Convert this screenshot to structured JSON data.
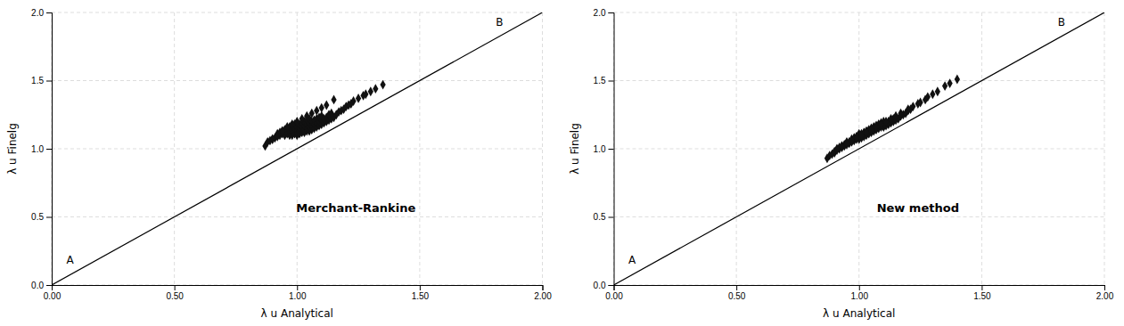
{
  "chart_data": [
    {
      "type": "scatter",
      "xlabel": "λ u Analytical",
      "ylabel": "λ u Finelg",
      "xlim": [
        0.0,
        2.0
      ],
      "ylim": [
        0.0,
        2.0
      ],
      "xticks": [
        {
          "value": 0.0,
          "label": "0.00"
        },
        {
          "value": 0.5,
          "label": "0.50"
        },
        {
          "value": 1.0,
          "label": "1.00"
        },
        {
          "value": 1.5,
          "label": "1.50"
        },
        {
          "value": 2.0,
          "label": "2.00"
        }
      ],
      "yticks": [
        {
          "value": 0.0,
          "label": "0.0"
        },
        0.5,
        {
          "value": 1.0,
          "label": "1.0"
        },
        1.5,
        {
          "value": 2.0,
          "label": "2.0"
        }
      ],
      "grid": true,
      "annotations": [
        {
          "text": "A",
          "x": 0.06,
          "y": 0.16
        },
        {
          "text": "B",
          "x": 1.81,
          "y": 1.9
        },
        {
          "text": "Merchant-Rankine"
        }
      ],
      "series": [
        {
          "type": "scatter",
          "color": "#111111",
          "marker": "diamond",
          "x": [
            0.87,
            0.88,
            0.89,
            0.9,
            0.91,
            0.92,
            0.92,
            0.93,
            0.93,
            0.94,
            0.94,
            0.95,
            0.95,
            0.95,
            0.96,
            0.96,
            0.96,
            0.97,
            0.97,
            0.97,
            0.97,
            0.98,
            0.98,
            0.98,
            0.98,
            0.99,
            0.99,
            0.99,
            0.99,
            1.0,
            1.0,
            1.0,
            1.0,
            1.0,
            1.01,
            1.01,
            1.01,
            1.01,
            1.02,
            1.02,
            1.02,
            1.02,
            1.03,
            1.03,
            1.03,
            1.03,
            1.04,
            1.04,
            1.04,
            1.04,
            1.05,
            1.05,
            1.05,
            1.05,
            1.06,
            1.06,
            1.06,
            1.07,
            1.07,
            1.07,
            1.08,
            1.08,
            1.08,
            1.09,
            1.09,
            1.09,
            1.1,
            1.1,
            1.1,
            1.11,
            1.11,
            1.12,
            1.12,
            1.13,
            1.13,
            1.14,
            1.14,
            1.15,
            1.16,
            1.17,
            1.18,
            1.19,
            1.2,
            1.21,
            1.22,
            1.23,
            1.25,
            1.27,
            1.28,
            1.3,
            1.32,
            1.35,
            0.9,
            0.92,
            0.94,
            0.96,
            0.98,
            1.0,
            1.02,
            1.04,
            1.06,
            1.08,
            1.1,
            1.12,
            1.15
          ],
          "values": [
            1.02,
            1.05,
            1.06,
            1.07,
            1.08,
            1.09,
            1.11,
            1.1,
            1.12,
            1.11,
            1.13,
            1.1,
            1.12,
            1.14,
            1.11,
            1.13,
            1.15,
            1.1,
            1.12,
            1.14,
            1.16,
            1.1,
            1.12,
            1.14,
            1.17,
            1.11,
            1.13,
            1.15,
            1.18,
            1.1,
            1.12,
            1.14,
            1.16,
            1.19,
            1.11,
            1.13,
            1.15,
            1.18,
            1.12,
            1.14,
            1.16,
            1.19,
            1.12,
            1.14,
            1.17,
            1.2,
            1.13,
            1.15,
            1.18,
            1.21,
            1.13,
            1.16,
            1.19,
            1.22,
            1.14,
            1.17,
            1.2,
            1.15,
            1.18,
            1.21,
            1.16,
            1.19,
            1.22,
            1.17,
            1.2,
            1.23,
            1.18,
            1.21,
            1.24,
            1.19,
            1.22,
            1.2,
            1.23,
            1.21,
            1.25,
            1.22,
            1.26,
            1.23,
            1.25,
            1.27,
            1.28,
            1.29,
            1.31,
            1.32,
            1.33,
            1.35,
            1.37,
            1.39,
            1.4,
            1.42,
            1.44,
            1.47,
            1.07,
            1.1,
            1.13,
            1.16,
            1.18,
            1.2,
            1.22,
            1.24,
            1.26,
            1.28,
            1.3,
            1.32,
            1.36
          ]
        },
        {
          "type": "line",
          "color": "#000000",
          "x": [
            0,
            2
          ],
          "values": [
            0,
            2
          ]
        }
      ]
    },
    {
      "type": "scatter",
      "xlabel": "λ u Analytical",
      "ylabel": "λ u Finelg",
      "xlim": [
        0.0,
        2.0
      ],
      "ylim": [
        0.0,
        2.0
      ],
      "xticks": [
        {
          "value": 0.0,
          "label": "0.00"
        },
        {
          "value": 0.5,
          "label": "0.50"
        },
        {
          "value": 1.0,
          "label": "1.00"
        },
        {
          "value": 1.5,
          "label": "1.50"
        },
        {
          "value": 2.0,
          "label": "2.00"
        }
      ],
      "yticks": [
        {
          "value": 0.0,
          "label": "0.0"
        },
        0.5,
        {
          "value": 1.0,
          "label": "1.0"
        },
        1.5,
        {
          "value": 2.0,
          "label": "2.0"
        }
      ],
      "grid": true,
      "annotations": [
        {
          "text": "A",
          "x": 0.06,
          "y": 0.16
        },
        {
          "text": "B",
          "x": 1.81,
          "y": 1.9
        },
        {
          "text": "New method"
        }
      ],
      "series": [
        {
          "type": "scatter",
          "color": "#111111",
          "marker": "diamond",
          "x": [
            0.87,
            0.88,
            0.89,
            0.9,
            0.9,
            0.91,
            0.92,
            0.92,
            0.93,
            0.93,
            0.94,
            0.94,
            0.95,
            0.95,
            0.95,
            0.96,
            0.96,
            0.97,
            0.97,
            0.97,
            0.98,
            0.98,
            0.98,
            0.99,
            0.99,
            0.99,
            1.0,
            1.0,
            1.0,
            1.0,
            1.01,
            1.01,
            1.01,
            1.02,
            1.02,
            1.02,
            1.03,
            1.03,
            1.03,
            1.04,
            1.04,
            1.04,
            1.05,
            1.05,
            1.05,
            1.06,
            1.06,
            1.06,
            1.07,
            1.07,
            1.07,
            1.08,
            1.08,
            1.08,
            1.09,
            1.09,
            1.09,
            1.1,
            1.1,
            1.1,
            1.11,
            1.11,
            1.12,
            1.12,
            1.13,
            1.13,
            1.14,
            1.14,
            1.15,
            1.16,
            1.17,
            1.18,
            1.19,
            1.2,
            1.21,
            1.22,
            1.24,
            1.25,
            1.27,
            1.28,
            1.3,
            1.32,
            1.35,
            1.37,
            1.4,
            0.91,
            0.93,
            0.95,
            0.97,
            0.99,
            1.01,
            1.03,
            1.05,
            1.07,
            1.09,
            1.11,
            1.13,
            1.15,
            1.17,
            1.2
          ],
          "values": [
            0.93,
            0.95,
            0.96,
            0.97,
            0.98,
            0.99,
            1.0,
            1.01,
            1.01,
            1.02,
            1.02,
            1.03,
            1.03,
            1.04,
            1.05,
            1.04,
            1.05,
            1.05,
            1.06,
            1.07,
            1.06,
            1.07,
            1.08,
            1.07,
            1.08,
            1.09,
            1.07,
            1.09,
            1.1,
            1.11,
            1.08,
            1.1,
            1.11,
            1.09,
            1.11,
            1.12,
            1.1,
            1.12,
            1.13,
            1.11,
            1.13,
            1.14,
            1.12,
            1.13,
            1.15,
            1.13,
            1.14,
            1.16,
            1.14,
            1.15,
            1.17,
            1.15,
            1.16,
            1.18,
            1.16,
            1.17,
            1.19,
            1.16,
            1.18,
            1.2,
            1.17,
            1.19,
            1.18,
            1.2,
            1.19,
            1.21,
            1.2,
            1.22,
            1.21,
            1.22,
            1.24,
            1.25,
            1.26,
            1.28,
            1.29,
            1.31,
            1.33,
            1.34,
            1.36,
            1.38,
            1.4,
            1.42,
            1.46,
            1.48,
            1.51,
            1.0,
            1.02,
            1.04,
            1.06,
            1.08,
            1.1,
            1.12,
            1.14,
            1.16,
            1.18,
            1.2,
            1.22,
            1.24,
            1.26,
            1.29
          ]
        },
        {
          "type": "line",
          "color": "#000000",
          "x": [
            0,
            2
          ],
          "values": [
            0,
            2
          ]
        }
      ]
    }
  ]
}
